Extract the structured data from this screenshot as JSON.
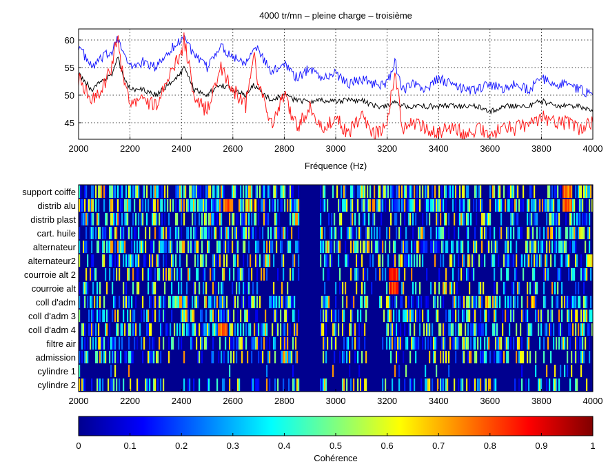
{
  "chart_data": [
    {
      "type": "line",
      "title": "4000 tr/mn – pleine charge – troisième",
      "xlabel": "Fréquence (Hz)",
      "ylabel": "",
      "xlim": [
        2000,
        4000
      ],
      "ylim": [
        42,
        62
      ],
      "xticks": [
        2000,
        2200,
        2400,
        2600,
        2800,
        3000,
        3200,
        3400,
        3600,
        3800,
        4000
      ],
      "yticks": [
        45,
        50,
        55,
        60
      ],
      "grid": true,
      "series": [
        {
          "color": "#1a1aff",
          "x": [
            2000,
            2050,
            2100,
            2130,
            2150,
            2170,
            2200,
            2250,
            2300,
            2350,
            2400,
            2410,
            2450,
            2500,
            2550,
            2600,
            2650,
            2680,
            2700,
            2750,
            2800,
            2850,
            2900,
            2950,
            3000,
            3050,
            3100,
            3150,
            3200,
            3230,
            3260,
            3300,
            3350,
            3400,
            3450,
            3500,
            3550,
            3600,
            3650,
            3700,
            3750,
            3800,
            3850,
            3900,
            3950,
            4000
          ],
          "y": [
            59,
            55,
            57,
            58,
            61,
            58,
            55,
            56,
            55,
            58,
            60,
            61,
            57,
            55,
            59,
            57,
            56,
            59,
            58,
            54,
            56,
            53,
            55,
            53,
            54,
            52,
            53,
            52,
            52,
            56,
            51,
            52,
            51,
            53,
            52,
            51,
            51,
            52,
            51,
            52,
            51,
            53,
            52,
            52,
            51,
            50
          ]
        },
        {
          "color": "#000000",
          "x": [
            2000,
            2050,
            2100,
            2130,
            2150,
            2170,
            2200,
            2250,
            2300,
            2350,
            2400,
            2410,
            2450,
            2500,
            2550,
            2600,
            2650,
            2680,
            2700,
            2750,
            2800,
            2850,
            2900,
            2950,
            3000,
            3050,
            3100,
            3150,
            3200,
            3230,
            3260,
            3300,
            3350,
            3400,
            3450,
            3500,
            3550,
            3600,
            3650,
            3700,
            3750,
            3800,
            3850,
            3900,
            3950,
            4000
          ],
          "y": [
            54,
            51,
            53,
            54,
            57,
            54,
            51,
            51,
            50,
            52,
            54,
            55,
            51,
            50,
            52,
            51,
            50,
            52,
            51,
            49,
            50,
            49,
            49,
            49,
            49,
            49,
            49,
            48,
            48,
            49,
            48,
            48,
            48,
            48,
            48,
            48,
            48,
            47,
            48,
            48,
            48,
            49,
            48,
            48,
            48,
            47
          ]
        },
        {
          "color": "#ff1a1a",
          "x": [
            2000,
            2050,
            2100,
            2130,
            2150,
            2170,
            2200,
            2250,
            2300,
            2350,
            2400,
            2410,
            2450,
            2500,
            2550,
            2600,
            2650,
            2680,
            2700,
            2750,
            2800,
            2850,
            2900,
            2950,
            3000,
            3050,
            3100,
            3150,
            3200,
            3230,
            3260,
            3300,
            3350,
            3400,
            3450,
            3500,
            3550,
            3600,
            3650,
            3700,
            3750,
            3800,
            3850,
            3900,
            3950,
            4000
          ],
          "y": [
            53,
            49,
            52,
            55,
            61,
            54,
            49,
            49,
            48,
            53,
            58,
            60,
            50,
            47,
            55,
            51,
            48,
            58,
            52,
            45,
            50,
            44,
            48,
            44,
            46,
            43,
            46,
            43,
            44,
            55,
            44,
            45,
            44,
            43,
            44,
            43,
            44,
            43,
            44,
            44,
            45,
            46,
            45,
            45,
            44,
            45
          ]
        }
      ]
    },
    {
      "type": "heatmap",
      "xlim": [
        2000,
        4000
      ],
      "xticks": [
        2000,
        2200,
        2400,
        2600,
        2800,
        3000,
        3200,
        3400,
        3600,
        3800,
        4000
      ],
      "rows": [
        "support coiffe",
        "distrib alu",
        "distrib plast",
        "cart. huile",
        "alternateur",
        "alternateur2",
        "courroie alt 2",
        "courroie alt",
        "coll d'adm",
        "coll d'adm 3",
        "coll d'adm 4",
        "filtre air",
        "admission",
        "cylindre 1",
        "cylindre 2"
      ],
      "row_activity": [
        0.75,
        0.8,
        0.6,
        0.65,
        0.7,
        0.6,
        0.45,
        0.4,
        0.7,
        0.65,
        0.7,
        0.65,
        0.5,
        0.1,
        0.45
      ],
      "hot_spots": [
        {
          "row": "support coiffe",
          "x": 3900,
          "value": 0.85
        },
        {
          "row": "distrib alu",
          "x": 2580,
          "value": 0.85
        },
        {
          "row": "distrib alu",
          "x": 3900,
          "value": 0.85
        },
        {
          "row": "courroie alt 2",
          "x": 3225,
          "value": 0.9
        },
        {
          "row": "courroie alt",
          "x": 3225,
          "value": 0.9
        },
        {
          "row": "coll d'adm 4",
          "x": 2560,
          "value": 0.85
        }
      ]
    },
    {
      "type": "colorbar",
      "label": "Cohérence",
      "range": [
        0,
        1
      ],
      "ticks": [
        "0",
        "0.1",
        "0.2",
        "0.3",
        "0.4",
        "0.5",
        "0.6",
        "0.7",
        "0.8",
        "0.9",
        "1"
      ]
    }
  ]
}
